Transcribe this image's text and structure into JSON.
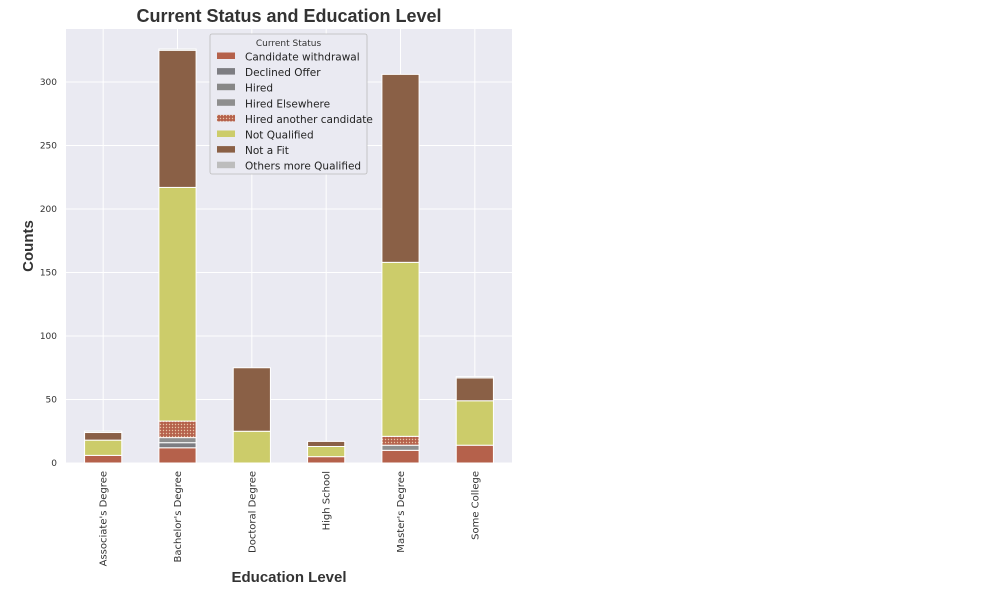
{
  "chart_data": {
    "type": "bar",
    "stacked": true,
    "title": "Current Status and Education Level",
    "xlabel": "Education Level",
    "ylabel": "Counts",
    "ylim": [
      0,
      340
    ],
    "yticks": [
      0,
      50,
      100,
      150,
      200,
      250,
      300
    ],
    "grid": true,
    "legend_title": "Current Status",
    "legend_position": "top-center",
    "categories": [
      "Associate's Degree",
      "Bachelor's Degree",
      "Doctoral Degree",
      "High School",
      "Master's Degree",
      "Some College"
    ],
    "series": [
      {
        "name": "Candidate withdrawal",
        "color": "#b5614b",
        "pattern": "solid",
        "values": [
          6,
          12,
          0,
          5,
          10,
          14
        ]
      },
      {
        "name": "Declined Offer",
        "color": "#7d7d82",
        "pattern": "solid",
        "values": [
          0,
          4,
          0,
          0,
          0,
          0
        ]
      },
      {
        "name": "Hired",
        "color": "#878787",
        "pattern": "solid",
        "values": [
          0,
          0,
          0,
          0,
          0,
          0
        ]
      },
      {
        "name": "Hired Elsewhere",
        "color": "#8e8e8e",
        "pattern": "solid",
        "values": [
          0,
          4,
          0,
          0,
          4,
          0
        ]
      },
      {
        "name": "Hired another candidate",
        "color": "#b5614b",
        "pattern": "dotted",
        "values": [
          0,
          13,
          0,
          0,
          7,
          0
        ]
      },
      {
        "name": "Not Qualified",
        "color": "#cccc6a",
        "pattern": "solid",
        "values": [
          12,
          184,
          25,
          8,
          137,
          35
        ]
      },
      {
        "name": "Not a Fit",
        "color": "#8a6046",
        "pattern": "solid",
        "values": [
          6,
          108,
          50,
          4,
          148,
          18
        ]
      },
      {
        "name": "Others more Qualified",
        "color": "#bdbdbd",
        "pattern": "solid",
        "values": [
          1,
          1,
          0,
          0,
          0,
          1
        ]
      }
    ]
  }
}
